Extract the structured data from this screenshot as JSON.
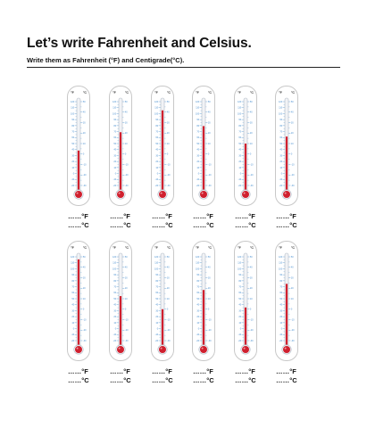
{
  "title": "Let’s write Fahrenheit and Celsius.",
  "subtitle": "Write them as Fahrenheit (°F) and Centigrade(°C).",
  "colors": {
    "mercury": "#d0202f",
    "fahrenheit_scale": "#4a90d0",
    "celsius_scale": "#4a90d0",
    "tube": "#f1f3f6"
  },
  "scale": {
    "fahrenheit_header": "°F",
    "celsius_header": "°C",
    "fahrenheit_labels": [
      "120",
      "110",
      "100",
      "90",
      "80",
      "70",
      "60",
      "50",
      "40",
      "30",
      "20",
      "10",
      "0",
      "-10",
      "-20"
    ],
    "celsius_labels": [
      "50",
      "40",
      "30",
      "20",
      "10",
      "0",
      "-10",
      "-20",
      "-30"
    ]
  },
  "answer_lines": {
    "fahrenheit": "……°F",
    "celsius": "……°C"
  },
  "thermometers": [
    {
      "fill_fraction": 0.42
    },
    {
      "fill_fraction": 0.63
    },
    {
      "fill_fraction": 0.88
    },
    {
      "fill_fraction": 0.7
    },
    {
      "fill_fraction": 0.5
    },
    {
      "fill_fraction": 0.58
    },
    {
      "fill_fraction": 0.95
    },
    {
      "fill_fraction": 0.53
    },
    {
      "fill_fraction": 0.38
    },
    {
      "fill_fraction": 0.6
    },
    {
      "fill_fraction": 0.4
    },
    {
      "fill_fraction": 0.67
    }
  ]
}
